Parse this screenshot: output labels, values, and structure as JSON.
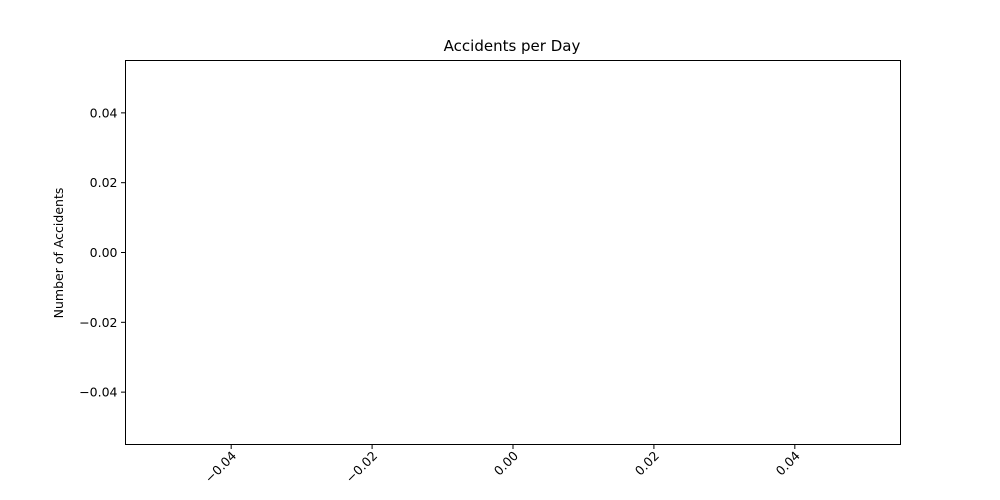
{
  "chart_data": {
    "type": "bar",
    "title": "Accidents per Day",
    "xlabel": "",
    "ylabel": "Number of Accidents",
    "categories": [],
    "values": [],
    "xlim": [
      -0.055,
      0.055
    ],
    "ylim": [
      -0.055,
      0.055
    ],
    "x_ticks": [
      -0.04,
      -0.02,
      0.0,
      0.02,
      0.04
    ],
    "x_tick_labels": [
      "−0.04",
      "−0.02",
      "0.00",
      "0.02",
      "0.04"
    ],
    "y_ticks": [
      0.04,
      0.02,
      0.0,
      -0.02,
      -0.04
    ],
    "y_tick_labels": [
      "0.04",
      "0.02",
      "0.00",
      "−0.02",
      "−0.04"
    ],
    "grid": false,
    "legend": "none"
  }
}
